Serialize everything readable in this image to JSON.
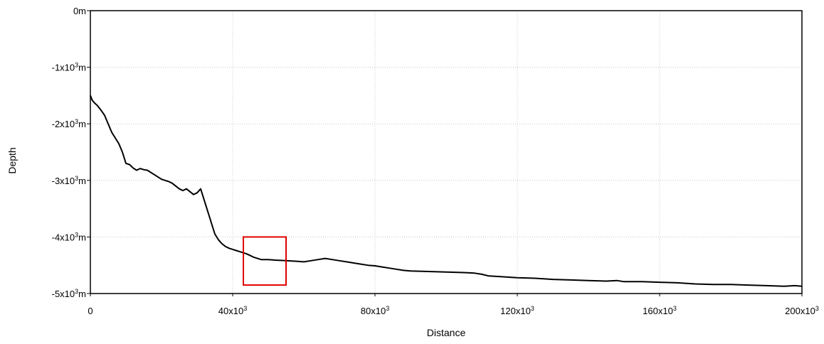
{
  "chart_data": {
    "type": "line",
    "xlabel": "Distance",
    "ylabel": "Depth",
    "xlim": [
      0,
      200000
    ],
    "ylim": [
      -5000,
      0
    ],
    "grid": true,
    "x_ticks": [
      {
        "value": 0,
        "base": "0",
        "exp": ""
      },
      {
        "value": 40000,
        "base": "40x10",
        "exp": "3"
      },
      {
        "value": 80000,
        "base": "80x10",
        "exp": "3"
      },
      {
        "value": 120000,
        "base": "120x10",
        "exp": "3"
      },
      {
        "value": 160000,
        "base": "160x10",
        "exp": "3"
      },
      {
        "value": 200000,
        "base": "200x10",
        "exp": "3"
      }
    ],
    "y_ticks": [
      {
        "value": 0,
        "base": "0m",
        "exp": "",
        "unit": ""
      },
      {
        "value": -1000,
        "base": "-1x10",
        "exp": "3",
        "unit": "m"
      },
      {
        "value": -2000,
        "base": "-2x10",
        "exp": "3",
        "unit": "m"
      },
      {
        "value": -3000,
        "base": "-3x10",
        "exp": "3",
        "unit": "m"
      },
      {
        "value": -4000,
        "base": "-4x10",
        "exp": "3",
        "unit": "m"
      },
      {
        "value": -5000,
        "base": "-5x10",
        "exp": "3",
        "unit": "m"
      }
    ],
    "series": [
      {
        "x": [
          0,
          500,
          1000,
          2000,
          3000,
          4000,
          5000,
          6000,
          7000,
          8000,
          9000,
          9500,
          10000,
          11000,
          12000,
          13000,
          14000,
          15000,
          16000,
          18000,
          20000,
          22000,
          23000,
          24000,
          25000,
          26000,
          27000,
          28000,
          29000,
          30000,
          31000,
          32000,
          33000,
          34000,
          35000,
          36000,
          37000,
          38000,
          39000,
          40000,
          41000,
          42000,
          43000,
          44000,
          45000,
          46000,
          48000,
          50000,
          52000,
          55000,
          58000,
          60000,
          62000,
          64000,
          66000,
          68000,
          70000,
          72000,
          74000,
          76000,
          78000,
          80000,
          82000,
          84000,
          86000,
          88000,
          90000,
          95000,
          100000,
          105000,
          108000,
          110000,
          112000,
          115000,
          120000,
          125000,
          130000,
          135000,
          140000,
          145000,
          148000,
          150000,
          155000,
          160000,
          165000,
          170000,
          175000,
          180000,
          185000,
          190000,
          195000,
          198000,
          200000
        ],
        "y": [
          -1500,
          -1580,
          -1620,
          -1680,
          -1760,
          -1850,
          -2000,
          -2150,
          -2250,
          -2350,
          -2500,
          -2600,
          -2700,
          -2720,
          -2780,
          -2820,
          -2790,
          -2810,
          -2820,
          -2900,
          -2980,
          -3020,
          -3050,
          -3100,
          -3150,
          -3180,
          -3150,
          -3200,
          -3250,
          -3220,
          -3150,
          -3350,
          -3550,
          -3750,
          -3950,
          -4050,
          -4120,
          -4170,
          -4200,
          -4220,
          -4240,
          -4260,
          -4280,
          -4300,
          -4330,
          -4360,
          -4400,
          -4400,
          -4410,
          -4420,
          -4430,
          -4440,
          -4420,
          -4400,
          -4380,
          -4400,
          -4420,
          -4440,
          -4460,
          -4480,
          -4500,
          -4510,
          -4530,
          -4550,
          -4570,
          -4590,
          -4600,
          -4610,
          -4620,
          -4630,
          -4640,
          -4660,
          -4690,
          -4700,
          -4720,
          -4730,
          -4750,
          -4760,
          -4770,
          -4780,
          -4770,
          -4790,
          -4790,
          -4800,
          -4810,
          -4830,
          -4840,
          -4840,
          -4850,
          -4860,
          -4870,
          -4860,
          -4870
        ]
      }
    ],
    "annotations": [
      {
        "type": "rectangle",
        "color": "#e00000",
        "x0": 43000,
        "x1": 55000,
        "y0": -4000,
        "y1": -4850
      }
    ]
  }
}
